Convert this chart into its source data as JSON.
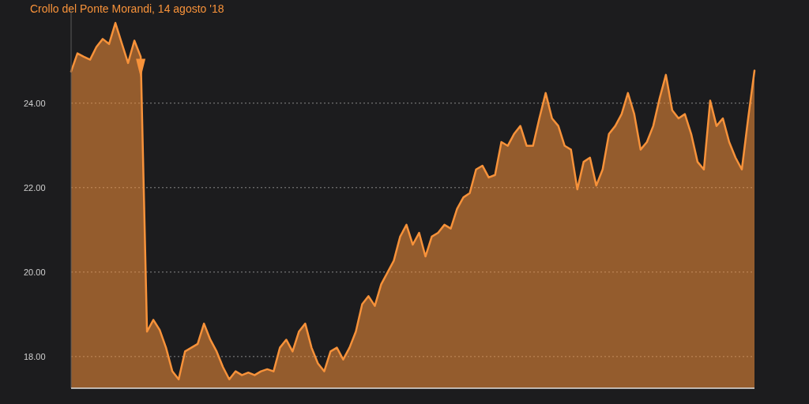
{
  "chart_data": {
    "type": "area",
    "title": "Crollo del Ponte Morandi, 14 agosto '18",
    "categories": [
      null,
      null,
      null,
      null,
      null,
      null,
      null,
      null,
      null,
      null,
      null,
      null,
      null,
      null,
      null,
      null,
      null,
      null,
      null,
      null,
      null,
      null,
      null,
      null,
      null,
      null,
      null,
      null,
      null,
      null,
      null,
      null,
      null,
      null,
      null,
      null,
      null,
      null,
      null,
      null,
      null,
      null,
      null,
      null,
      null,
      null,
      null,
      null,
      null,
      null,
      null,
      null,
      null,
      null,
      null,
      null,
      null,
      null,
      null,
      null,
      null,
      null,
      null,
      null,
      null,
      null,
      null,
      null,
      null,
      null,
      null,
      null,
      null,
      null,
      null,
      null,
      null,
      null,
      null,
      null,
      null,
      null,
      null,
      null,
      null,
      null,
      null,
      null,
      null,
      null,
      null,
      null,
      null,
      null,
      null,
      null,
      null,
      null,
      null,
      null,
      null,
      null,
      null,
      null,
      null,
      null,
      null,
      null,
      null
    ],
    "series": [
      {
        "color": "#f7923a",
        "values": [
          24.75,
          25.18,
          25.1,
          25.03,
          25.33,
          25.52,
          25.4,
          25.9,
          25.42,
          24.95,
          25.48,
          25.1,
          18.59,
          18.87,
          18.63,
          18.21,
          17.65,
          17.46,
          18.12,
          18.21,
          18.3,
          18.78,
          18.4,
          18.12,
          17.75,
          17.46,
          17.65,
          17.56,
          17.62,
          17.56,
          17.65,
          17.7,
          17.65,
          18.21,
          18.4,
          18.12,
          18.59,
          18.78,
          18.21,
          17.84,
          17.65,
          18.12,
          18.21,
          17.93,
          18.21,
          18.59,
          19.24,
          19.43,
          19.2,
          19.71,
          19.99,
          20.27,
          20.84,
          21.12,
          20.65,
          20.93,
          20.37,
          20.84,
          20.93,
          21.12,
          21.03,
          21.5,
          21.77,
          21.87,
          22.43,
          22.52,
          22.24,
          22.3,
          23.08,
          22.99,
          23.27,
          23.46,
          22.99,
          22.99,
          23.64,
          24.24,
          23.64,
          23.46,
          22.99,
          22.9,
          21.96,
          22.61,
          22.71,
          22.05,
          22.43,
          23.27,
          23.46,
          23.74,
          24.24,
          23.74,
          22.9,
          23.08,
          23.46,
          24.11,
          24.67,
          23.83,
          23.64,
          23.74,
          23.27,
          22.61,
          22.43,
          24.06,
          23.46,
          23.64,
          23.08,
          22.71,
          22.43,
          23.64,
          24.77
        ]
      }
    ],
    "ylim": [
      17.25,
      26.2
    ],
    "yticks": [
      {
        "value": 18,
        "label": "18.00"
      },
      {
        "value": 20,
        "label": "20.00"
      },
      {
        "value": 22,
        "label": "22.00"
      },
      {
        "value": 24,
        "label": "24.00"
      }
    ],
    "grid": "y"
  }
}
